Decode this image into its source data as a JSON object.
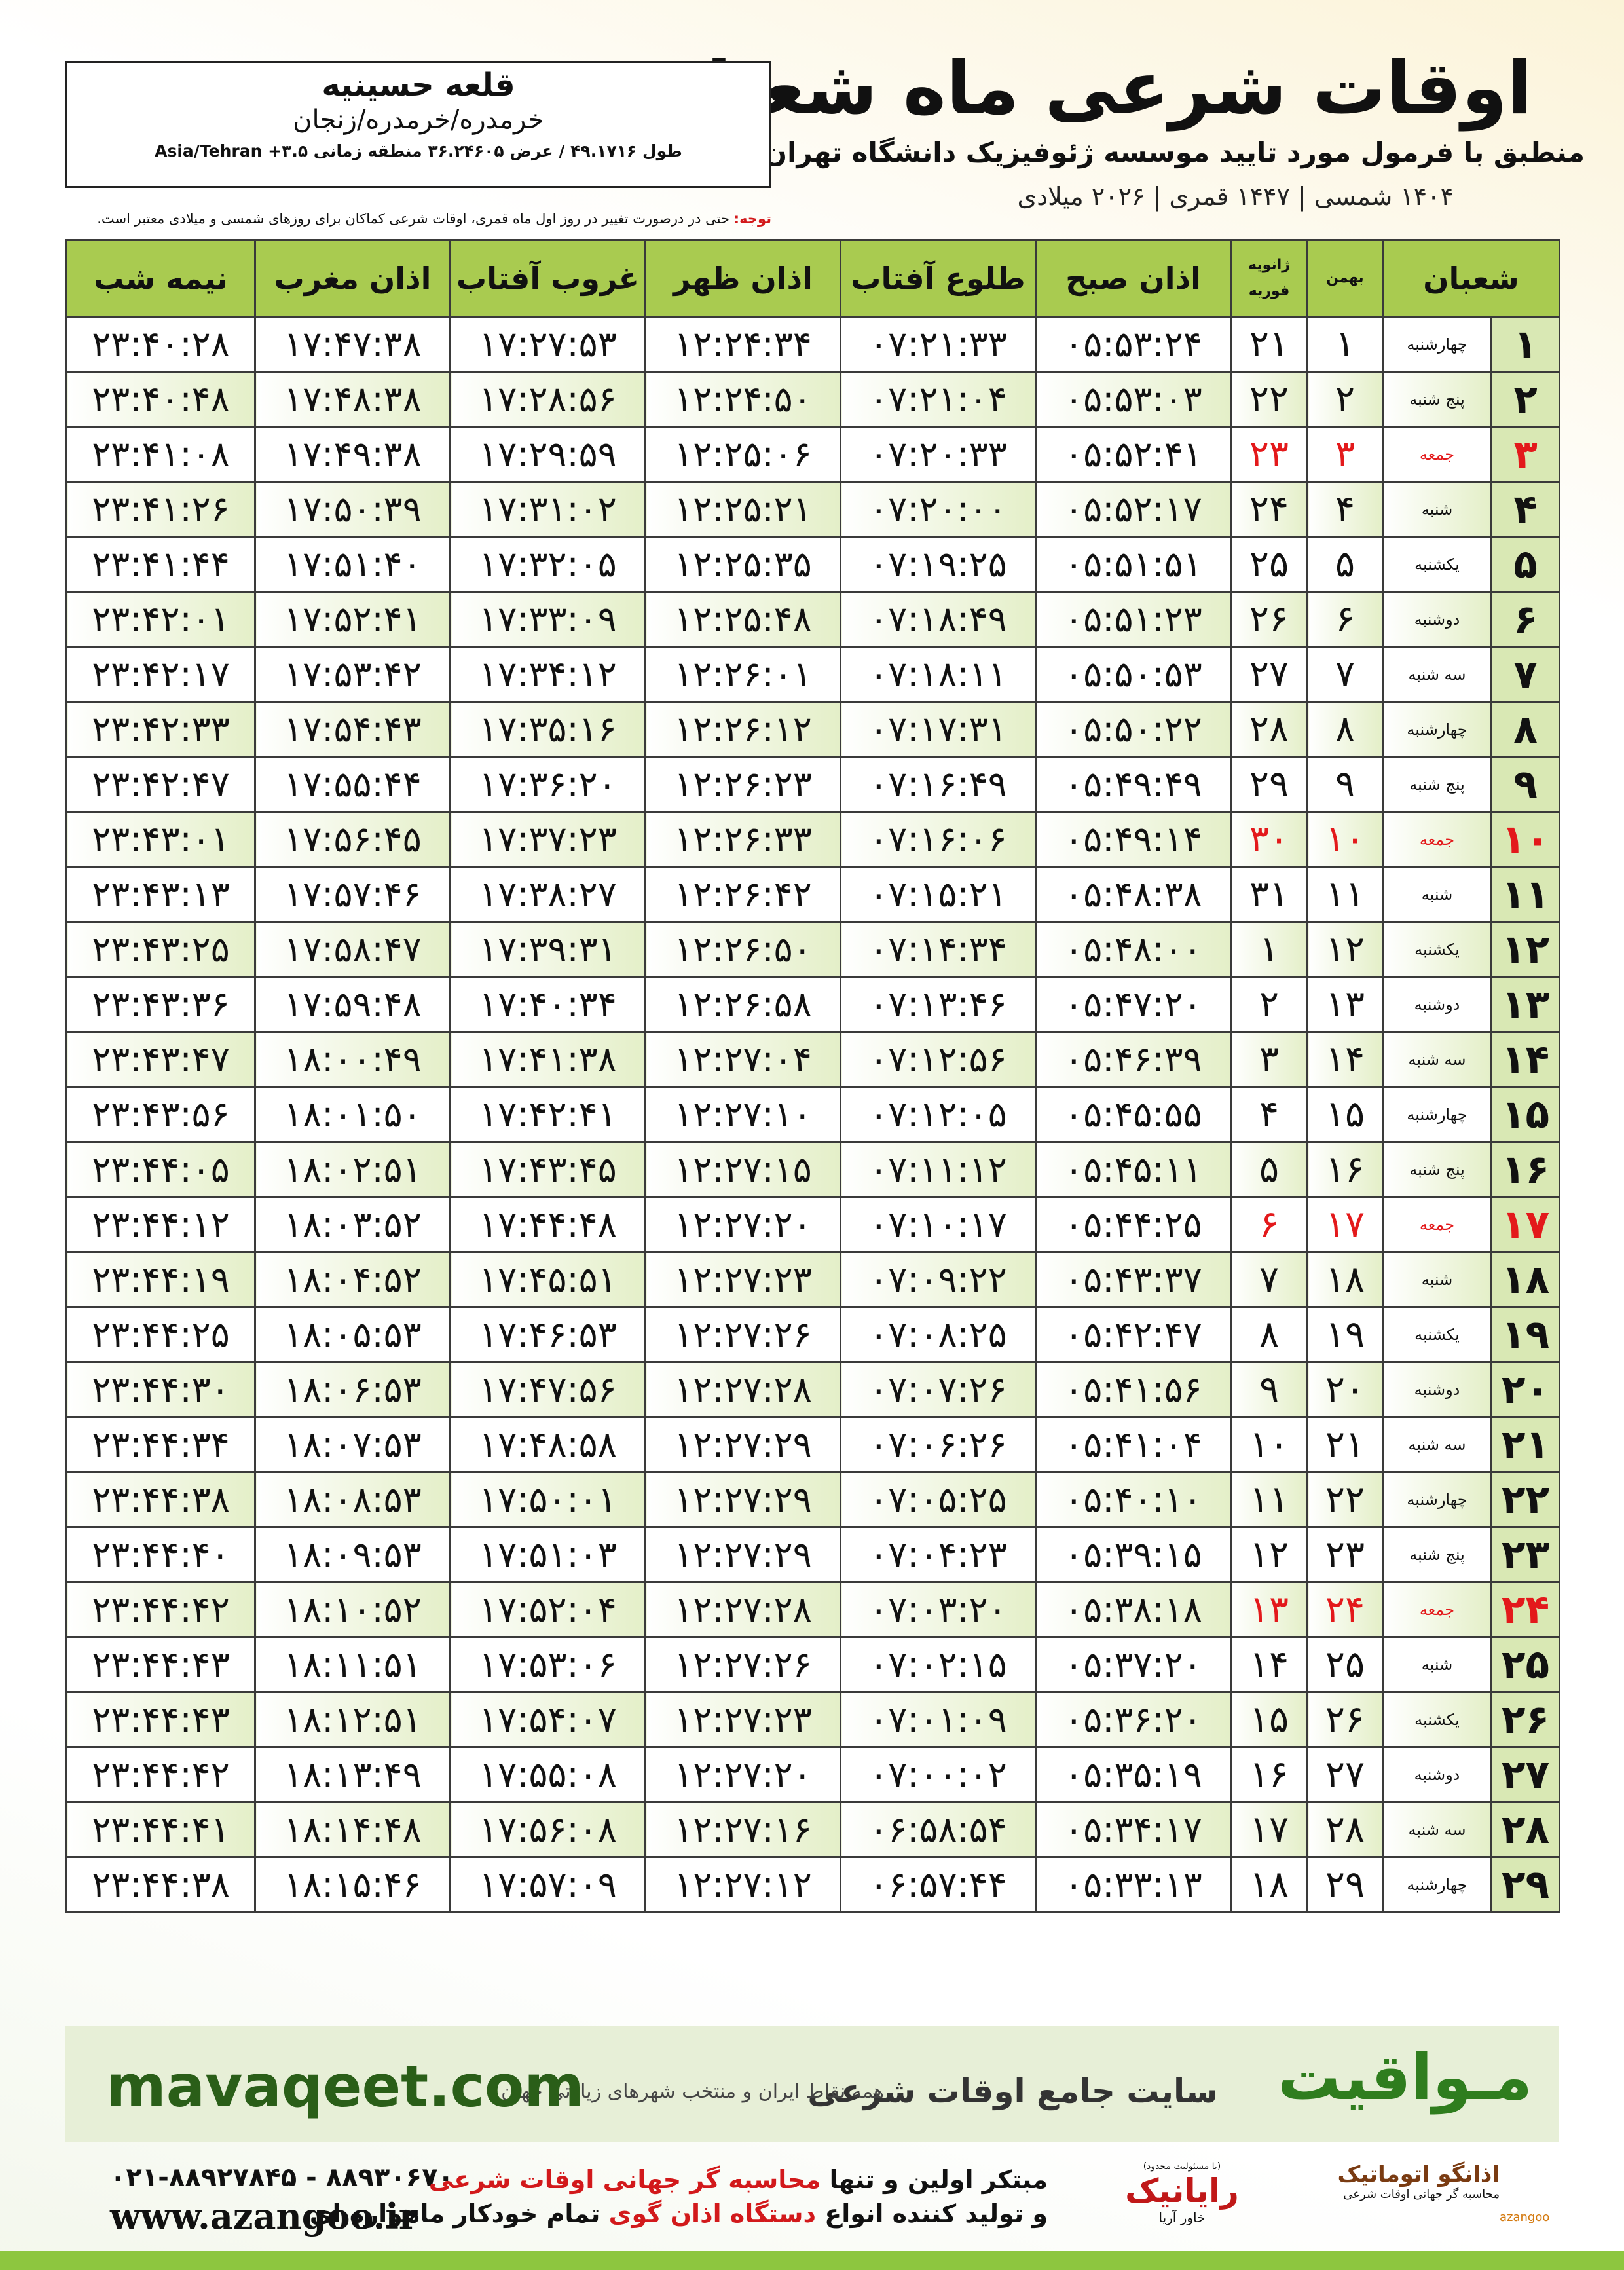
{
  "header": {
    "title": "اوقات شرعی ماه شعبان",
    "subtitle": "منطبق با فرمول مورد تایید موسسه ژئوفیزیک دانشگاه تهران",
    "dates": "۱۴۰۴ شمسی | ۱۴۴۷ قمری | ۲۰۲۶ میلادی"
  },
  "location": {
    "city": "قلعه حسینیه",
    "region": "خرمدره/خرمدره/زنجان",
    "coords": "طول ۴۹.۱۷۱۶ / عرض ۳۶.۲۴۶۰۵ منطقه زمانی ۳.۵+ Asia/Tehran"
  },
  "note": {
    "label": "توجه:",
    "text": "حتی در درصورت تغییر در روز اول ماه قمری، اوقات شرعی کماکان برای روزهای شمسی و میلادی معتبر است."
  },
  "table": {
    "header": [
      "شعبان",
      "بهمن",
      [
        "ژانویه",
        "فوریه"
      ],
      "اذان صبح",
      "طلوع آفتاب",
      "اذان ظهر",
      "غروب آفتاب",
      "اذان مغرب",
      "نیمه شب"
    ],
    "highlight_color": "#e3191b",
    "rows": [
      {
        "cells": [
          "۱",
          "چهارشنبه",
          "۱",
          "۲۱",
          "۰۵:۵۳:۲۴",
          "۰۷:۲۱:۳۳",
          "۱۲:۲۴:۳۴",
          "۱۷:۲۷:۵۳",
          "۱۷:۴۷:۳۸",
          "۲۳:۴۰:۲۸"
        ]
      },
      {
        "cells": [
          "۲",
          "پنج شنبه",
          "۲",
          "۲۲",
          "۰۵:۵۳:۰۳",
          "۰۷:۲۱:۰۴",
          "۱۲:۲۴:۵۰",
          "۱۷:۲۸:۵۶",
          "۱۷:۴۸:۳۸",
          "۲۳:۴۰:۴۸"
        ]
      },
      {
        "cells": [
          "۳",
          "جمعه",
          "۳",
          "۲۳",
          "۰۵:۵۲:۴۱",
          "۰۷:۲۰:۳۳",
          "۱۲:۲۵:۰۶",
          "۱۷:۲۹:۵۹",
          "۱۷:۴۹:۳۸",
          "۲۳:۴۱:۰۸"
        ],
        "highlight": true
      },
      {
        "cells": [
          "۴",
          "شنبه",
          "۴",
          "۲۴",
          "۰۵:۵۲:۱۷",
          "۰۷:۲۰:۰۰",
          "۱۲:۲۵:۲۱",
          "۱۷:۳۱:۰۲",
          "۱۷:۵۰:۳۹",
          "۲۳:۴۱:۲۶"
        ]
      },
      {
        "cells": [
          "۵",
          "یکشنبه",
          "۵",
          "۲۵",
          "۰۵:۵۱:۵۱",
          "۰۷:۱۹:۲۵",
          "۱۲:۲۵:۳۵",
          "۱۷:۳۲:۰۵",
          "۱۷:۵۱:۴۰",
          "۲۳:۴۱:۴۴"
        ]
      },
      {
        "cells": [
          "۶",
          "دوشنبه",
          "۶",
          "۲۶",
          "۰۵:۵۱:۲۳",
          "۰۷:۱۸:۴۹",
          "۱۲:۲۵:۴۸",
          "۱۷:۳۳:۰۹",
          "۱۷:۵۲:۴۱",
          "۲۳:۴۲:۰۱"
        ]
      },
      {
        "cells": [
          "۷",
          "سه شنبه",
          "۷",
          "۲۷",
          "۰۵:۵۰:۵۳",
          "۰۷:۱۸:۱۱",
          "۱۲:۲۶:۰۱",
          "۱۷:۳۴:۱۲",
          "۱۷:۵۳:۴۲",
          "۲۳:۴۲:۱۷"
        ]
      },
      {
        "cells": [
          "۸",
          "چهارشنبه",
          "۸",
          "۲۸",
          "۰۵:۵۰:۲۲",
          "۰۷:۱۷:۳۱",
          "۱۲:۲۶:۱۲",
          "۱۷:۳۵:۱۶",
          "۱۷:۵۴:۴۳",
          "۲۳:۴۲:۳۳"
        ]
      },
      {
        "cells": [
          "۹",
          "پنج شنبه",
          "۹",
          "۲۹",
          "۰۵:۴۹:۴۹",
          "۰۷:۱۶:۴۹",
          "۱۲:۲۶:۲۳",
          "۱۷:۳۶:۲۰",
          "۱۷:۵۵:۴۴",
          "۲۳:۴۲:۴۷"
        ]
      },
      {
        "cells": [
          "۱۰",
          "جمعه",
          "۱۰",
          "۳۰",
          "۰۵:۴۹:۱۴",
          "۰۷:۱۶:۰۶",
          "۱۲:۲۶:۳۳",
          "۱۷:۳۷:۲۳",
          "۱۷:۵۶:۴۵",
          "۲۳:۴۳:۰۱"
        ],
        "highlight": true
      },
      {
        "cells": [
          "۱۱",
          "شنبه",
          "۱۱",
          "۳۱",
          "۰۵:۴۸:۳۸",
          "۰۷:۱۵:۲۱",
          "۱۲:۲۶:۴۲",
          "۱۷:۳۸:۲۷",
          "۱۷:۵۷:۴۶",
          "۲۳:۴۳:۱۳"
        ]
      },
      {
        "cells": [
          "۱۲",
          "یکشنبه",
          "۱۲",
          "۱",
          "۰۵:۴۸:۰۰",
          "۰۷:۱۴:۳۴",
          "۱۲:۲۶:۵۰",
          "۱۷:۳۹:۳۱",
          "۱۷:۵۸:۴۷",
          "۲۳:۴۳:۲۵"
        ]
      },
      {
        "cells": [
          "۱۳",
          "دوشنبه",
          "۱۳",
          "۲",
          "۰۵:۴۷:۲۰",
          "۰۷:۱۳:۴۶",
          "۱۲:۲۶:۵۸",
          "۱۷:۴۰:۳۴",
          "۱۷:۵۹:۴۸",
          "۲۳:۴۳:۳۶"
        ]
      },
      {
        "cells": [
          "۱۴",
          "سه شنبه",
          "۱۴",
          "۳",
          "۰۵:۴۶:۳۹",
          "۰۷:۱۲:۵۶",
          "۱۲:۲۷:۰۴",
          "۱۷:۴۱:۳۸",
          "۱۸:۰۰:۴۹",
          "۲۳:۴۳:۴۷"
        ]
      },
      {
        "cells": [
          "۱۵",
          "چهارشنبه",
          "۱۵",
          "۴",
          "۰۵:۴۵:۵۵",
          "۰۷:۱۲:۰۵",
          "۱۲:۲۷:۱۰",
          "۱۷:۴۲:۴۱",
          "۱۸:۰۱:۵۰",
          "۲۳:۴۳:۵۶"
        ]
      },
      {
        "cells": [
          "۱۶",
          "پنج شنبه",
          "۱۶",
          "۵",
          "۰۵:۴۵:۱۱",
          "۰۷:۱۱:۱۲",
          "۱۲:۲۷:۱۵",
          "۱۷:۴۳:۴۵",
          "۱۸:۰۲:۵۱",
          "۲۳:۴۴:۰۵"
        ]
      },
      {
        "cells": [
          "۱۷",
          "جمعه",
          "۱۷",
          "۶",
          "۰۵:۴۴:۲۵",
          "۰۷:۱۰:۱۷",
          "۱۲:۲۷:۲۰",
          "۱۷:۴۴:۴۸",
          "۱۸:۰۳:۵۲",
          "۲۳:۴۴:۱۲"
        ],
        "highlight": true
      },
      {
        "cells": [
          "۱۸",
          "شنبه",
          "۱۸",
          "۷",
          "۰۵:۴۳:۳۷",
          "۰۷:۰۹:۲۲",
          "۱۲:۲۷:۲۳",
          "۱۷:۴۵:۵۱",
          "۱۸:۰۴:۵۲",
          "۲۳:۴۴:۱۹"
        ]
      },
      {
        "cells": [
          "۱۹",
          "یکشنبه",
          "۱۹",
          "۸",
          "۰۵:۴۲:۴۷",
          "۰۷:۰۸:۲۵",
          "۱۲:۲۷:۲۶",
          "۱۷:۴۶:۵۳",
          "۱۸:۰۵:۵۳",
          "۲۳:۴۴:۲۵"
        ]
      },
      {
        "cells": [
          "۲۰",
          "دوشنبه",
          "۲۰",
          "۹",
          "۰۵:۴۱:۵۶",
          "۰۷:۰۷:۲۶",
          "۱۲:۲۷:۲۸",
          "۱۷:۴۷:۵۶",
          "۱۸:۰۶:۵۳",
          "۲۳:۴۴:۳۰"
        ]
      },
      {
        "cells": [
          "۲۱",
          "سه شنبه",
          "۲۱",
          "۱۰",
          "۰۵:۴۱:۰۴",
          "۰۷:۰۶:۲۶",
          "۱۲:۲۷:۲۹",
          "۱۷:۴۸:۵۸",
          "۱۸:۰۷:۵۳",
          "۲۳:۴۴:۳۴"
        ]
      },
      {
        "cells": [
          "۲۲",
          "چهارشنبه",
          "۲۲",
          "۱۱",
          "۰۵:۴۰:۱۰",
          "۰۷:۰۵:۲۵",
          "۱۲:۲۷:۲۹",
          "۱۷:۵۰:۰۱",
          "۱۸:۰۸:۵۳",
          "۲۳:۴۴:۳۸"
        ]
      },
      {
        "cells": [
          "۲۳",
          "پنج شنبه",
          "۲۳",
          "۱۲",
          "۰۵:۳۹:۱۵",
          "۰۷:۰۴:۲۳",
          "۱۲:۲۷:۲۹",
          "۱۷:۵۱:۰۳",
          "۱۸:۰۹:۵۳",
          "۲۳:۴۴:۴۰"
        ]
      },
      {
        "cells": [
          "۲۴",
          "جمعه",
          "۲۴",
          "۱۳",
          "۰۵:۳۸:۱۸",
          "۰۷:۰۳:۲۰",
          "۱۲:۲۷:۲۸",
          "۱۷:۵۲:۰۴",
          "۱۸:۱۰:۵۲",
          "۲۳:۴۴:۴۲"
        ],
        "highlight": true
      },
      {
        "cells": [
          "۲۵",
          "شنبه",
          "۲۵",
          "۱۴",
          "۰۵:۳۷:۲۰",
          "۰۷:۰۲:۱۵",
          "۱۲:۲۷:۲۶",
          "۱۷:۵۳:۰۶",
          "۱۸:۱۱:۵۱",
          "۲۳:۴۴:۴۳"
        ]
      },
      {
        "cells": [
          "۲۶",
          "یکشنبه",
          "۲۶",
          "۱۵",
          "۰۵:۳۶:۲۰",
          "۰۷:۰۱:۰۹",
          "۱۲:۲۷:۲۳",
          "۱۷:۵۴:۰۷",
          "۱۸:۱۲:۵۱",
          "۲۳:۴۴:۴۳"
        ]
      },
      {
        "cells": [
          "۲۷",
          "دوشنبه",
          "۲۷",
          "۱۶",
          "۰۵:۳۵:۱۹",
          "۰۷:۰۰:۰۲",
          "۱۲:۲۷:۲۰",
          "۱۷:۵۵:۰۸",
          "۱۸:۱۳:۴۹",
          "۲۳:۴۴:۴۲"
        ]
      },
      {
        "cells": [
          "۲۸",
          "سه شنبه",
          "۲۸",
          "۱۷",
          "۰۵:۳۴:۱۷",
          "۰۶:۵۸:۵۴",
          "۱۲:۲۷:۱۶",
          "۱۷:۵۶:۰۸",
          "۱۸:۱۴:۴۸",
          "۲۳:۴۴:۴۱"
        ]
      },
      {
        "cells": [
          "۲۹",
          "چهارشنبه",
          "۲۹",
          "۱۸",
          "۰۵:۳۳:۱۳",
          "۰۶:۵۷:۴۴",
          "۱۲:۲۷:۱۲",
          "۱۷:۵۷:۰۹",
          "۱۸:۱۵:۴۶",
          "۲۳:۴۴:۳۸"
        ]
      }
    ]
  },
  "banner": {
    "brand": "مـواقیت",
    "slogan": "سایت جامع اوقات شرعی",
    "tagline": "همه نقاط ایران و منتخب شهرهای زیارتی جهان",
    "url": "mavaqeet.com"
  },
  "footer": {
    "phones": "۰۲۱-۸۸۹۲۷۸۴۵ - ۸۸۹۳۰۶۷۰",
    "website": "www.azangoo.ir",
    "line1": [
      "مبتکر اولین و تنها ",
      "محاسبه گر جهانی اوقات شرعی"
    ],
    "line2": [
      "و تولید کننده انواع ",
      "دستگاه اذان گوی",
      " تمام خودکار ماهواره ای"
    ],
    "logo_raya": {
      "note": "(با مسئولیت محدود)",
      "name": "رایانیک",
      "sub": "خاور آریا"
    },
    "logo_azangoo": {
      "name": "اذانگو اتوماتیک",
      "sub": "محاسبه گر جهانی اوقات شرعی",
      "latin": "azangoo"
    }
  }
}
